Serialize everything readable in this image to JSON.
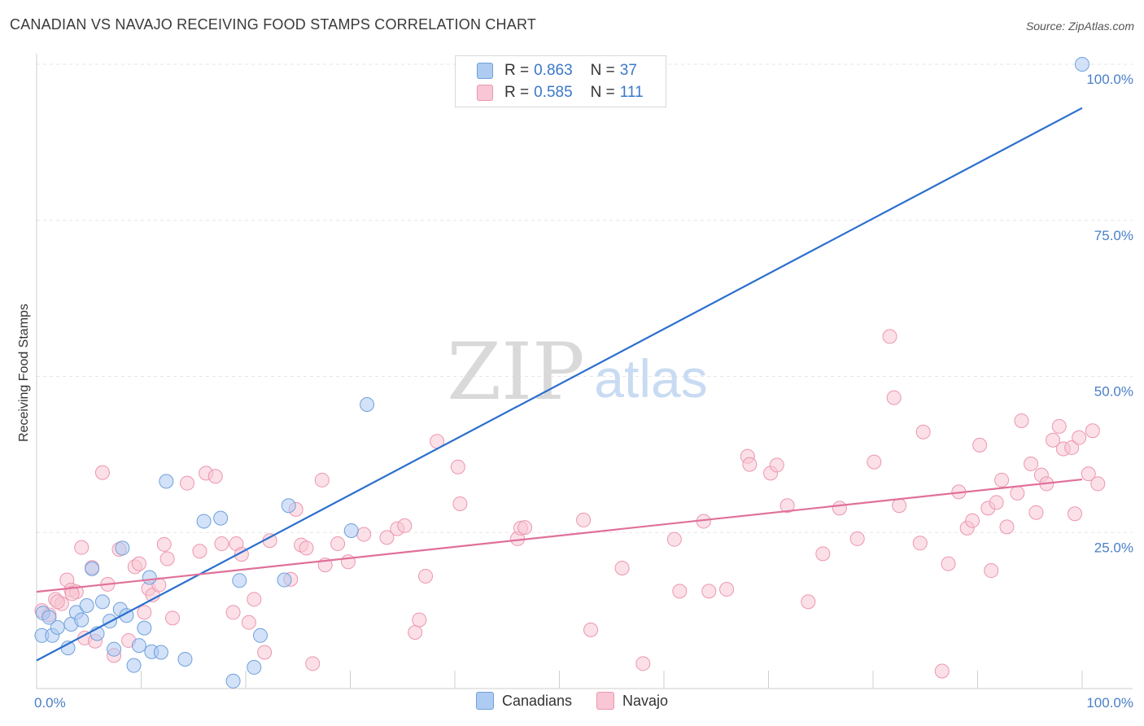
{
  "title": "CANADIAN VS NAVAJO RECEIVING FOOD STAMPS CORRELATION CHART",
  "source": "Source: ZipAtlas.com",
  "watermark": {
    "zip": "ZIP",
    "atlas": "atlas"
  },
  "legend": {
    "r_label": "R =",
    "n_label": "N =",
    "rows": [
      {
        "series": "Canadians",
        "r": "0.863",
        "n": "37",
        "color": "#aecbf2",
        "border": "#6fa0dc"
      },
      {
        "series": "Navajo",
        "r": "0.585",
        "n": "111",
        "color": "#f8c6d4",
        "border": "#ec96b0"
      }
    ]
  },
  "bottom_legend": [
    {
      "label": "Canadians",
      "color": "#aecbf2",
      "border": "#6fa0dc"
    },
    {
      "label": "Navajo",
      "color": "#f8c6d4",
      "border": "#ec96b0"
    }
  ],
  "chart_data": {
    "type": "scatter",
    "ylabel": "Receiving Food Stamps",
    "xlabel": "",
    "xlim": [
      0,
      100
    ],
    "ylim": [
      0,
      100
    ],
    "x_tick_labels": [
      {
        "value": 0,
        "label": "0.0%"
      },
      {
        "value": 100,
        "label": "100.0%"
      }
    ],
    "y_tick_labels": [
      {
        "value": 25,
        "label": "25.0%"
      },
      {
        "value": 50,
        "label": "50.0%"
      },
      {
        "value": 75,
        "label": "75.0%"
      },
      {
        "value": 100,
        "label": "100.0%"
      }
    ],
    "grid": true,
    "series": [
      {
        "name": "Canadians",
        "color": "#6fa0dc",
        "line_color": "#2b6fce",
        "trend": {
          "x": [
            0,
            100
          ],
          "y": [
            4.5,
            93
          ]
        },
        "points": [
          [
            0.5,
            8.5
          ],
          [
            1.5,
            8.5
          ],
          [
            2,
            9.8
          ],
          [
            3,
            6.5
          ],
          [
            3.3,
            10.3
          ],
          [
            3.8,
            12.2
          ],
          [
            4.3,
            11
          ],
          [
            4.8,
            13.3
          ],
          [
            5.3,
            19.2
          ],
          [
            5.8,
            8.8
          ],
          [
            6.3,
            13.9
          ],
          [
            7,
            10.8
          ],
          [
            7.4,
            6.3
          ],
          [
            8,
            12.7
          ],
          [
            8.2,
            22.5
          ],
          [
            8.6,
            11.7
          ],
          [
            9.3,
            3.7
          ],
          [
            9.8,
            6.9
          ],
          [
            10.3,
            9.7
          ],
          [
            10.8,
            17.8
          ],
          [
            11,
            5.9
          ],
          [
            11.9,
            5.8
          ],
          [
            12.4,
            33.2
          ],
          [
            14.2,
            4.7
          ],
          [
            16,
            26.8
          ],
          [
            17.6,
            27.3
          ],
          [
            18.8,
            1.2
          ],
          [
            19.4,
            17.3
          ],
          [
            20.8,
            3.4
          ],
          [
            21.4,
            8.5
          ],
          [
            23.7,
            17.4
          ],
          [
            24.1,
            29.3
          ],
          [
            30.1,
            25.3
          ],
          [
            31.6,
            45.5
          ],
          [
            100,
            100
          ],
          [
            0.6,
            12.1
          ],
          [
            1.2,
            11.4
          ]
        ]
      },
      {
        "name": "Navajo",
        "color": "#ec96b0",
        "line_color": "#e0709a",
        "trend": {
          "x": [
            0,
            100
          ],
          "y": [
            15.5,
            33.5
          ]
        },
        "points": [
          [
            0.5,
            12.5
          ],
          [
            1.2,
            11.8
          ],
          [
            1.8,
            14.3
          ],
          [
            2.4,
            13.6
          ],
          [
            2.9,
            17.4
          ],
          [
            3.3,
            15.8
          ],
          [
            3.8,
            15.5
          ],
          [
            4.3,
            22.6
          ],
          [
            4.6,
            8.1
          ],
          [
            5.3,
            19.4
          ],
          [
            5.6,
            7.6
          ],
          [
            6.3,
            34.6
          ],
          [
            6.8,
            16.7
          ],
          [
            7.4,
            5.3
          ],
          [
            7.9,
            22.3
          ],
          [
            8.8,
            7.7
          ],
          [
            9.4,
            19.5
          ],
          [
            9.8,
            20
          ],
          [
            10.3,
            12.2
          ],
          [
            10.7,
            16
          ],
          [
            11.1,
            15
          ],
          [
            11.7,
            16.6
          ],
          [
            12.2,
            23.1
          ],
          [
            12.5,
            20.8
          ],
          [
            13,
            11.3
          ],
          [
            14.4,
            32.9
          ],
          [
            15.6,
            22
          ],
          [
            16.2,
            34.5
          ],
          [
            17.1,
            34
          ],
          [
            17.7,
            23.2
          ],
          [
            18.8,
            12.2
          ],
          [
            19.1,
            23.2
          ],
          [
            19.6,
            21.5
          ],
          [
            20.3,
            10.6
          ],
          [
            20.8,
            14.3
          ],
          [
            21.8,
            5.8
          ],
          [
            22.3,
            23.7
          ],
          [
            24.3,
            17.5
          ],
          [
            24.8,
            28.7
          ],
          [
            25.3,
            23
          ],
          [
            25.8,
            22.5
          ],
          [
            26.4,
            4
          ],
          [
            27.3,
            33.4
          ],
          [
            27.6,
            19.8
          ],
          [
            28.8,
            23.2
          ],
          [
            29.8,
            20.3
          ],
          [
            31.3,
            24.7
          ],
          [
            33.5,
            24.2
          ],
          [
            34.5,
            25.6
          ],
          [
            35.2,
            26.1
          ],
          [
            36.2,
            9
          ],
          [
            36.6,
            11
          ],
          [
            37.2,
            18
          ],
          [
            38.3,
            39.6
          ],
          [
            40.3,
            35.5
          ],
          [
            40.5,
            29.6
          ],
          [
            46,
            24
          ],
          [
            46.3,
            25.7
          ],
          [
            46.7,
            25.8
          ],
          [
            52.3,
            27
          ],
          [
            53,
            9.4
          ],
          [
            56,
            19.3
          ],
          [
            58,
            4
          ],
          [
            61,
            23.9
          ],
          [
            61.5,
            15.6
          ],
          [
            63.8,
            26.8
          ],
          [
            64.3,
            15.6
          ],
          [
            66,
            15.9
          ],
          [
            68,
            37.2
          ],
          [
            68.2,
            35.9
          ],
          [
            70.2,
            34.5
          ],
          [
            70.8,
            35.8
          ],
          [
            71.8,
            29.3
          ],
          [
            73.8,
            13.9
          ],
          [
            75.2,
            21.6
          ],
          [
            76.8,
            28.9
          ],
          [
            78.5,
            24
          ],
          [
            80.1,
            36.3
          ],
          [
            81.6,
            56.4
          ],
          [
            82,
            46.6
          ],
          [
            82.5,
            29.3
          ],
          [
            84.5,
            23.3
          ],
          [
            84.8,
            41.1
          ],
          [
            86.6,
            2.8
          ],
          [
            87.2,
            20
          ],
          [
            88.2,
            31.5
          ],
          [
            89,
            25.7
          ],
          [
            89.5,
            26.9
          ],
          [
            90.2,
            39
          ],
          [
            91,
            28.9
          ],
          [
            91.3,
            18.9
          ],
          [
            91.8,
            29.8
          ],
          [
            92.3,
            33.4
          ],
          [
            92.8,
            25.9
          ],
          [
            93.8,
            31.3
          ],
          [
            94.2,
            42.9
          ],
          [
            95.1,
            36
          ],
          [
            95.6,
            28.2
          ],
          [
            96.1,
            34.2
          ],
          [
            96.6,
            32.8
          ],
          [
            97.2,
            39.8
          ],
          [
            97.8,
            42
          ],
          [
            98.2,
            38.4
          ],
          [
            99,
            38.6
          ],
          [
            99.3,
            28
          ],
          [
            99.7,
            40.2
          ],
          [
            100.6,
            34.4
          ],
          [
            101,
            41.3
          ],
          [
            101.5,
            32.8
          ],
          [
            2,
            13.9
          ],
          [
            3.4,
            15.2
          ]
        ]
      }
    ]
  }
}
